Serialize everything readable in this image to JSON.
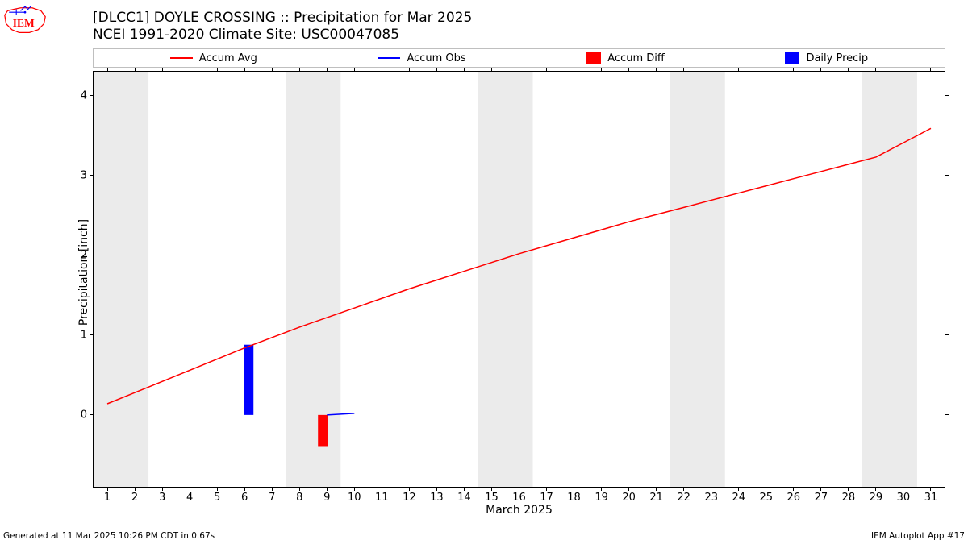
{
  "title": {
    "line1": "[DLCC1] DOYLE CROSSING :: Precipitation for Mar 2025",
    "line2": "NCEI 1991-2020 Climate Site: USC00047085"
  },
  "legend": {
    "items": [
      {
        "label": "Accum Avg",
        "type": "line",
        "color": "#ff0000"
      },
      {
        "label": "Accum Obs",
        "type": "line",
        "color": "#0000ff"
      },
      {
        "label": "Accum Diff",
        "type": "rect",
        "color": "#ff0000"
      },
      {
        "label": "Daily Precip",
        "type": "rect",
        "color": "#0000ff"
      }
    ]
  },
  "chart": {
    "ylabel": "Precipitation [inch]",
    "xlabel": "March 2025",
    "ylim": [
      -0.9,
      4.3
    ],
    "yticks": [
      0,
      1,
      2,
      3,
      4
    ],
    "xlim": [
      0.5,
      31.5
    ],
    "xticks": [
      1,
      2,
      3,
      4,
      5,
      6,
      7,
      8,
      9,
      10,
      11,
      12,
      13,
      14,
      15,
      16,
      17,
      18,
      19,
      20,
      21,
      22,
      23,
      24,
      25,
      26,
      27,
      28,
      29,
      30,
      31
    ],
    "background_color": "#ffffff",
    "weekend_bands": [
      [
        1,
        2
      ],
      [
        8,
        9
      ],
      [
        15,
        16
      ],
      [
        22,
        23
      ],
      [
        29,
        30
      ]
    ],
    "weekend_color": "#ebebeb",
    "accum_avg": {
      "color": "#ff0000",
      "width": 1.5,
      "points": [
        [
          1,
          0.14
        ],
        [
          2,
          0.28
        ],
        [
          3,
          0.42
        ],
        [
          4,
          0.56
        ],
        [
          5,
          0.7
        ],
        [
          6,
          0.84
        ],
        [
          7,
          0.97
        ],
        [
          8,
          1.1
        ],
        [
          9,
          1.22
        ],
        [
          10,
          1.34
        ],
        [
          11,
          1.46
        ],
        [
          12,
          1.58
        ],
        [
          13,
          1.69
        ],
        [
          14,
          1.8
        ],
        [
          15,
          1.91
        ],
        [
          16,
          2.02
        ],
        [
          17,
          2.12
        ],
        [
          18,
          2.22
        ],
        [
          19,
          2.32
        ],
        [
          20,
          2.42
        ],
        [
          21,
          2.51
        ],
        [
          22,
          2.6
        ],
        [
          23,
          2.69
        ],
        [
          24,
          2.78
        ],
        [
          25,
          2.87
        ],
        [
          26,
          2.96
        ],
        [
          27,
          3.05
        ],
        [
          28,
          3.14
        ],
        [
          29,
          3.23
        ],
        [
          30,
          3.41
        ],
        [
          31,
          3.59
        ]
      ]
    },
    "accum_obs": {
      "color": "#0000ff",
      "width": 1.5,
      "points": [
        [
          9.0,
          0.0
        ],
        [
          10.0,
          0.02
        ]
      ]
    },
    "bars": {
      "width": 0.35,
      "items": [
        {
          "x": 6.15,
          "y": 0.88,
          "color": "#0000ff"
        },
        {
          "x": 8.85,
          "y": -0.4,
          "color": "#ff0000"
        }
      ]
    }
  },
  "footer": {
    "left": "Generated at 11 Mar 2025 10:26 PM CDT in 0.67s",
    "right": "IEM Autoplot App #17"
  },
  "logo": {
    "text": "IEM",
    "outline_color": "#ff0000",
    "accent_color": "#0000ff"
  }
}
